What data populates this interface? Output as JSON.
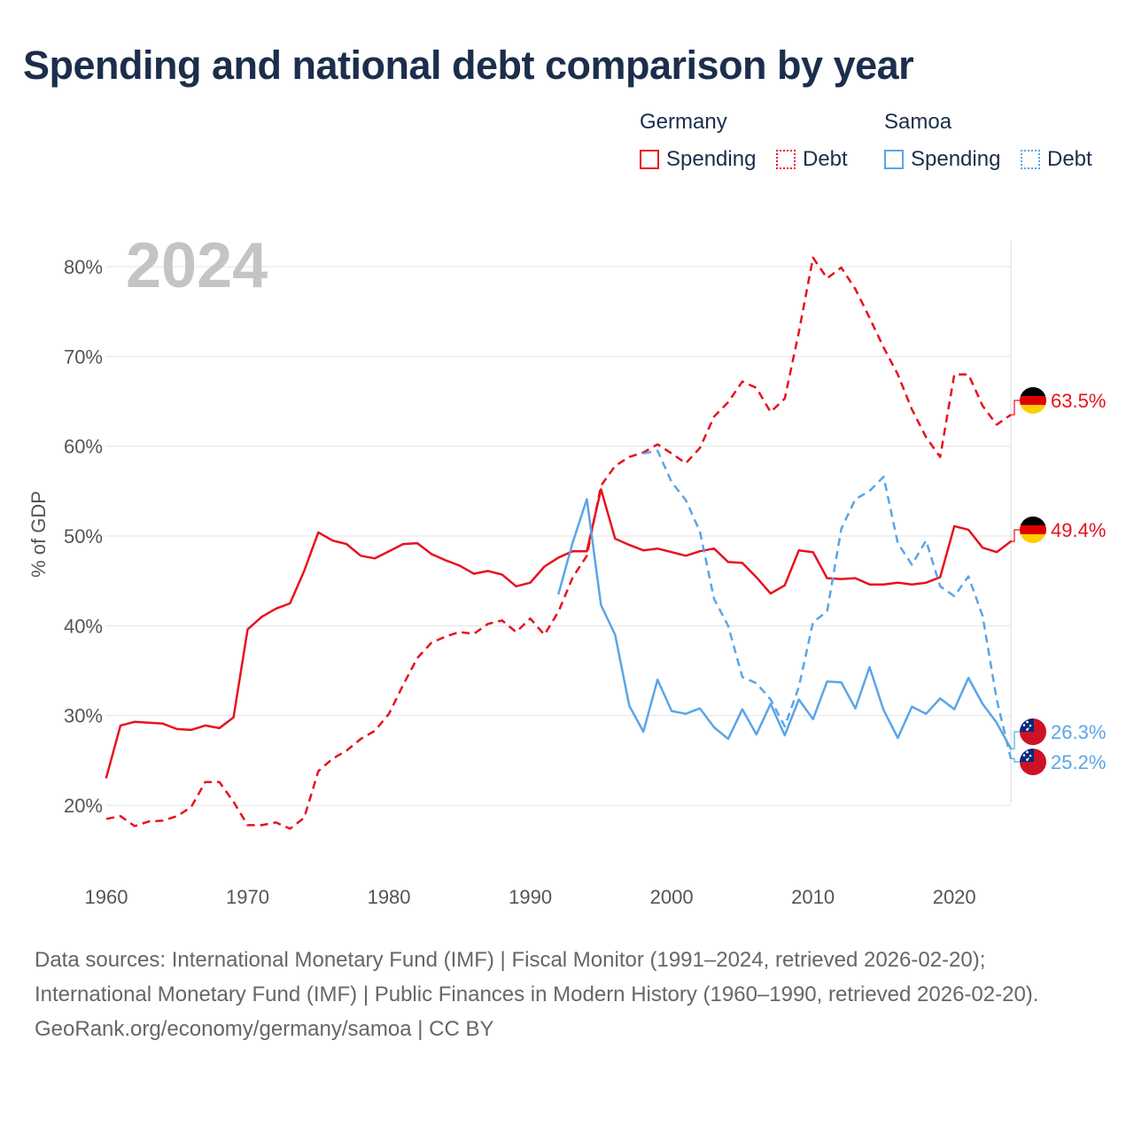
{
  "title": "Spending and national debt comparison by year",
  "legend": {
    "groups": [
      {
        "name": "Germany",
        "color": "#e8111d",
        "items": [
          {
            "label": "Spending",
            "style": "solid"
          },
          {
            "label": "Debt",
            "style": "dotted"
          }
        ]
      },
      {
        "name": "Samoa",
        "color": "#5aa5e8",
        "items": [
          {
            "label": "Spending",
            "style": "solid"
          },
          {
            "label": "Debt",
            "style": "dotted"
          }
        ]
      }
    ]
  },
  "footer": {
    "sources": "Data sources: International Monetary Fund (IMF) | Fiscal Monitor (1991–2024, retrieved 2026-02-20); International Monetary Fund (IMF) | Public Finances in Modern History (1960–1990, retrieved 2026-02-20).",
    "credit": "GeoRank.org/economy/germany/samoa | CC BY"
  },
  "chart_data": {
    "type": "line",
    "title": "Spending and national debt comparison by year",
    "year_label": "2024",
    "xlabel": "",
    "ylabel": "% of GDP",
    "xlim": [
      1960,
      2024
    ],
    "ylim": [
      13,
      87
    ],
    "x_ticks": [
      1960,
      1970,
      1980,
      1990,
      2000,
      2010,
      2020
    ],
    "y_ticks": [
      20,
      30,
      40,
      50,
      60,
      70,
      80
    ],
    "y_tick_labels": [
      "20%",
      "30%",
      "40%",
      "50%",
      "60%",
      "70%",
      "80%"
    ],
    "grid": true,
    "series": [
      {
        "name": "Germany Spending",
        "country": "Germany",
        "metric": "Spending",
        "color": "#e8111d",
        "dash": "solid",
        "flag": "germany-flag",
        "end_label": "49.4%",
        "start_year": 1960,
        "values": [
          23.1,
          28.9,
          29.3,
          29.2,
          29.1,
          28.5,
          28.4,
          28.9,
          28.6,
          29.8,
          39.6,
          41.0,
          41.9,
          42.5,
          46.1,
          50.4,
          49.5,
          49.1,
          47.8,
          47.5,
          48.3,
          49.1,
          49.2,
          48.0,
          47.3,
          46.7,
          45.8,
          46.1,
          45.7,
          44.4,
          44.8,
          46.6,
          47.6,
          48.3,
          48.3,
          55.2,
          49.7,
          49.0,
          48.4,
          48.6,
          48.2,
          47.8,
          48.3,
          48.6,
          47.1,
          47.0,
          45.4,
          43.6,
          44.5,
          48.4,
          48.2,
          45.3,
          45.2,
          45.3,
          44.6,
          44.6,
          44.8,
          44.6,
          44.8,
          45.4,
          51.1,
          50.7,
          48.7,
          48.2,
          49.4
        ]
      },
      {
        "name": "Germany Debt",
        "country": "Germany",
        "metric": "Debt",
        "color": "#e8111d",
        "dash": "dashed",
        "flag": "germany-flag",
        "end_label": "63.5%",
        "start_year": 1960,
        "values": [
          18.5,
          18.8,
          17.7,
          18.2,
          18.3,
          18.8,
          19.8,
          22.6,
          22.6,
          20.4,
          17.8,
          17.8,
          18.1,
          17.4,
          18.6,
          23.8,
          25.2,
          26.1,
          27.4,
          28.3,
          30.2,
          33.4,
          36.4,
          38.1,
          38.8,
          39.3,
          39.1,
          40.2,
          40.6,
          39.3,
          40.8,
          39.0,
          41.6,
          45.4,
          47.8,
          55.6,
          57.8,
          58.8,
          59.3,
          60.2,
          59.2,
          58.1,
          59.8,
          63.3,
          64.9,
          67.2,
          66.5,
          63.8,
          65.3,
          72.7,
          81.0,
          78.7,
          79.9,
          77.5,
          74.3,
          71.0,
          68.0,
          64.1,
          61.0,
          58.8,
          68.0,
          68.0,
          64.5,
          62.4,
          63.5
        ]
      },
      {
        "name": "Samoa Spending",
        "country": "Samoa",
        "metric": "Spending",
        "color": "#5aa5e8",
        "dash": "solid",
        "flag": "samoa-flag",
        "end_label": "26.3%",
        "start_year": 1992,
        "values": [
          43.6,
          49.3,
          54.1,
          42.3,
          39.0,
          31.1,
          28.2,
          34.0,
          30.5,
          30.2,
          30.8,
          28.7,
          27.4,
          30.7,
          27.9,
          31.3,
          27.8,
          31.8,
          29.6,
          33.8,
          33.7,
          30.8,
          35.4,
          30.6,
          27.5,
          31.0,
          30.2,
          31.9,
          30.7,
          34.2,
          31.3,
          29.2,
          26.3
        ]
      },
      {
        "name": "Samoa Debt",
        "country": "Samoa",
        "metric": "Debt",
        "color": "#5aa5e8",
        "dash": "dashed",
        "flag": "samoa-flag",
        "end_label": "25.2%",
        "start_year": 1998,
        "values": [
          59.2,
          59.5,
          56.0,
          54.0,
          50.5,
          43.0,
          40.0,
          34.3,
          33.6,
          31.8,
          28.8,
          33.2,
          40.4,
          41.6,
          50.8,
          54.1,
          55.0,
          56.6,
          49.2,
          46.8,
          49.5,
          44.4,
          43.3,
          45.5,
          41.1,
          31.8,
          25.2
        ]
      }
    ]
  }
}
